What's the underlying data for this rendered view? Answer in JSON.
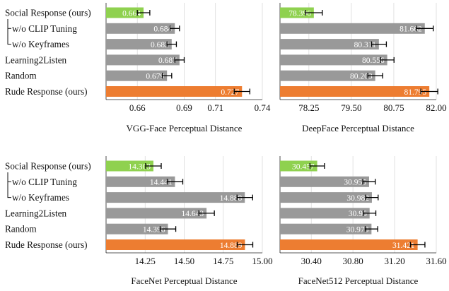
{
  "row_labels": {
    "top": [
      "Social Response (ours)",
      "w/o CLIP Tuning",
      "w/o Keyframes",
      "Learning2Listen",
      "Random",
      "Rude Response (ours)"
    ],
    "bottom": [
      "Social Response (ours)",
      "w/o CLIP Tuning",
      "w/o Keyframes",
      "Learning2Listen",
      "Random",
      "Rude Response (ours)"
    ]
  },
  "colors": {
    "ours_social": "#8fd14f",
    "baseline": "#999999",
    "ours_rude": "#ed7d31",
    "error_bar": "#000000"
  },
  "chart_data": [
    {
      "type": "bar",
      "orientation": "horizontal",
      "xlabel": "VGG-Face Perceptual Distance",
      "categories": [
        "Social Response (ours)",
        "w/o CLIP Tuning",
        "w/o Keyframes",
        "Learning2Listen",
        "Random",
        "Rude Response (ours)"
      ],
      "values": [
        0.664,
        0.684,
        0.682,
        0.687,
        0.679,
        0.727
      ],
      "value_labels": [
        "0.664",
        "0.684",
        "0.682",
        "0.687",
        "0.679",
        "0.727"
      ],
      "errors": [
        0.004,
        0.003,
        0.003,
        0.003,
        0.003,
        0.005
      ],
      "xlim": [
        0.64,
        0.74
      ],
      "xticks": [
        0.66,
        0.69,
        0.71,
        0.74
      ],
      "xtick_labels": [
        "0.66",
        "0.69",
        "0.71",
        "0.74"
      ],
      "grid": "vertical"
    },
    {
      "type": "bar",
      "orientation": "horizontal",
      "xlabel": "DeepFace Perceptual Distance",
      "categories": [
        "Social Response (ours)",
        "w/o CLIP Tuning",
        "w/o Keyframes",
        "Learning2Listen",
        "Random",
        "Rude Response (ours)"
      ],
      "values": [
        78.396,
        81.662,
        80.311,
        80.556,
        80.203,
        81.795
      ],
      "value_labels": [
        "78.396",
        "81.662",
        "80.311",
        "80.556",
        "80.203",
        "81.795"
      ],
      "errors": [
        0.25,
        0.25,
        0.22,
        0.2,
        0.22,
        0.25
      ],
      "xlim": [
        77.4,
        82.0
      ],
      "xticks": [
        78.25,
        79.5,
        80.75,
        82.0
      ],
      "xtick_labels": [
        "78.25",
        "79.50",
        "80.75",
        "82.00"
      ],
      "grid": "vertical"
    },
    {
      "type": "bar",
      "orientation": "horizontal",
      "xlabel": "FaceNet Perceptual Distance",
      "categories": [
        "Social Response (ours)",
        "w/o CLIP Tuning",
        "w/o Keyframes",
        "Learning2Listen",
        "Random",
        "Rude Response (ours)"
      ],
      "values": [
        14.303,
        14.441,
        14.888,
        14.643,
        14.396,
        14.889
      ],
      "value_labels": [
        "14.303",
        "14.441",
        "14.888",
        "14.643",
        "14.396",
        "14.889"
      ],
      "errors": [
        0.05,
        0.05,
        0.05,
        0.05,
        0.05,
        0.05
      ],
      "xlim": [
        14.0,
        15.0
      ],
      "xticks": [
        14.25,
        14.5,
        14.75,
        15.0
      ],
      "xtick_labels": [
        "14.25",
        "14.50",
        "14.75",
        "15.00"
      ],
      "grid": "vertical"
    },
    {
      "type": "bar",
      "orientation": "horizontal",
      "xlabel": "FaceNet512 Perceptual Distance",
      "categories": [
        "Social Response (ours)",
        "w/o CLIP Tuning",
        "w/o Keyframes",
        "Learning2Listen",
        "Random",
        "Rude Response (ours)"
      ],
      "values": [
        30.457,
        30.955,
        30.982,
        30.96,
        30.978,
        31.421
      ],
      "value_labels": [
        "30.457",
        "30.955",
        "30.982",
        "30.96",
        "30.978",
        "31.421"
      ],
      "errors": [
        0.07,
        0.06,
        0.06,
        0.06,
        0.06,
        0.07
      ],
      "xlim": [
        30.1,
        31.6
      ],
      "xticks": [
        30.4,
        30.8,
        31.2,
        31.6
      ],
      "xtick_labels": [
        "30.40",
        "30.80",
        "31.20",
        "31.60"
      ],
      "grid": "vertical"
    }
  ]
}
